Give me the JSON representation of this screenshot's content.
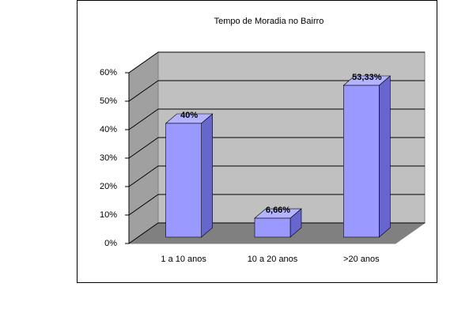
{
  "chart_data": {
    "type": "bar3d",
    "title": "Tempo de Moradia no Bairro",
    "categories": [
      "1 a 10 anos",
      "10 a 20 anos",
      ">20 anos"
    ],
    "values": [
      40,
      6.66,
      53.33
    ],
    "value_labels": [
      "40%",
      "6,66%",
      "53,33%"
    ],
    "color": "#9999ff",
    "ylim": [
      0,
      60
    ],
    "yticks": [
      {
        "value": 0,
        "label": "0%"
      },
      {
        "value": 10,
        "label": "10%"
      },
      {
        "value": 20,
        "label": "20%"
      },
      {
        "value": 30,
        "label": "30%"
      },
      {
        "value": 40,
        "label": "40%"
      },
      {
        "value": 50,
        "label": "50%"
      },
      {
        "value": 60,
        "label": "60%"
      }
    ],
    "grid": true
  }
}
